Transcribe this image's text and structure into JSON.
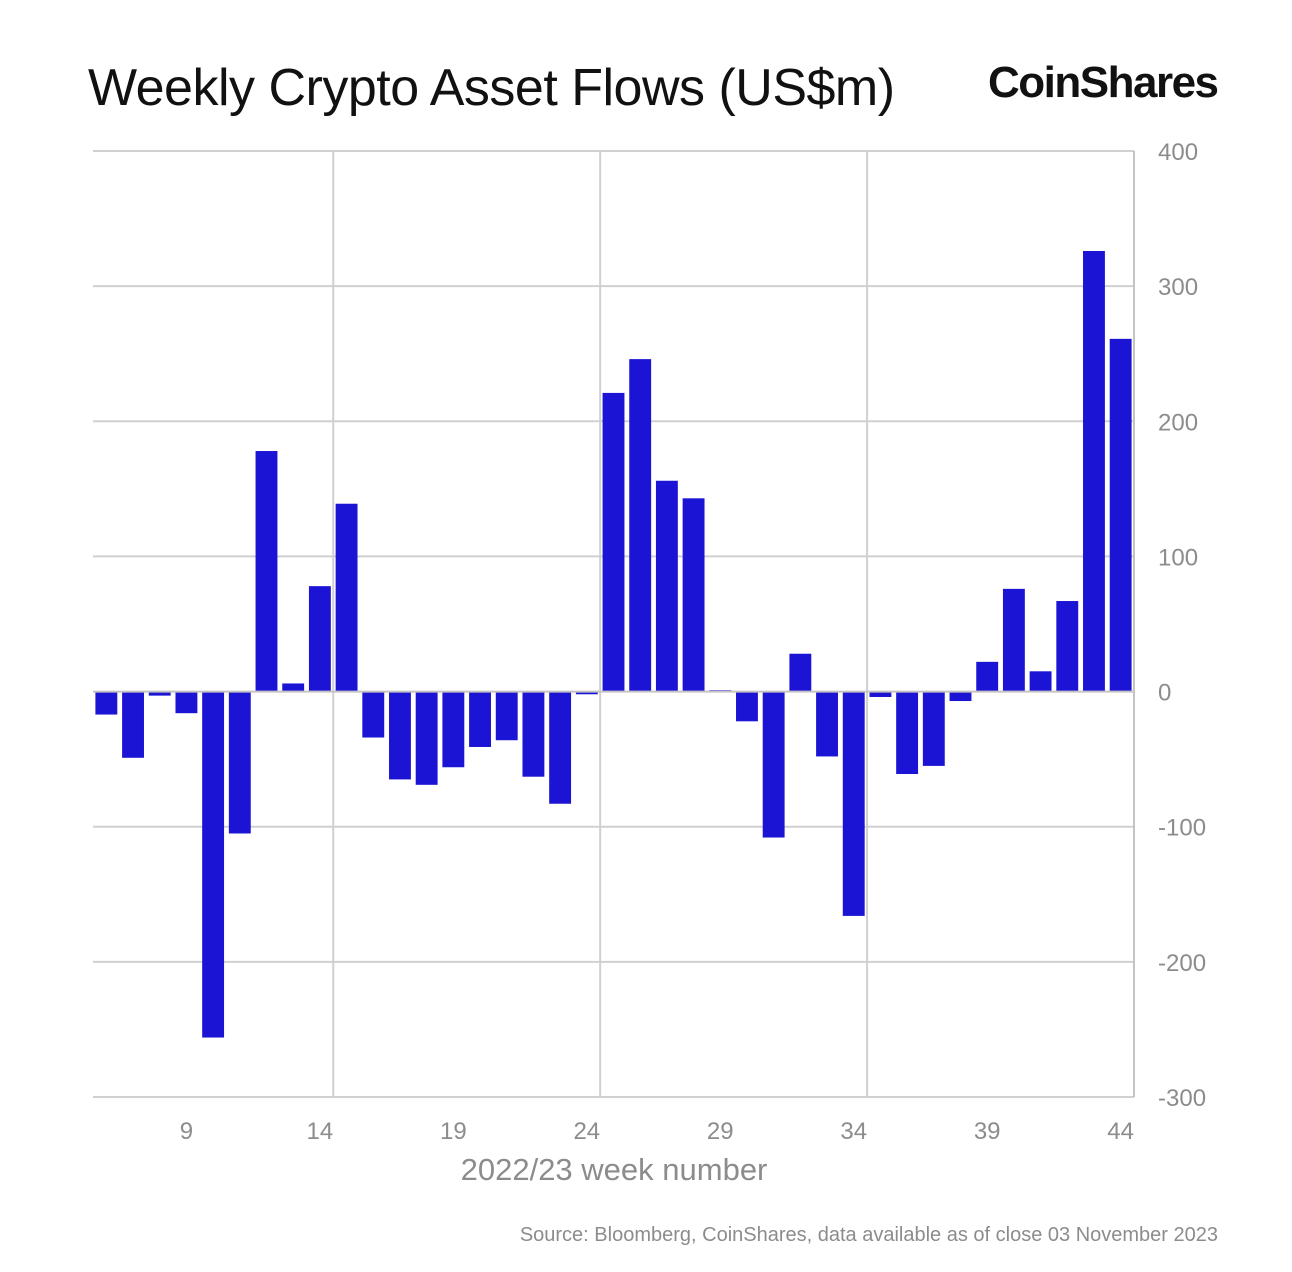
{
  "chart_data": {
    "type": "bar",
    "title": "Weekly Crypto Asset Flows (US$m)",
    "brand": "CoinShares",
    "xlabel": "2022/23 week number",
    "ylabel": "",
    "source": "Source: Bloomberg, CoinShares, data available as of close 03 November 2023",
    "ylim": [
      -300,
      400
    ],
    "y_ticks": [
      "400",
      "300",
      "200",
      "100",
      "0",
      "-100",
      "-200",
      "-300"
    ],
    "y_axis_side": "right",
    "x_ticks": [
      "9",
      "14",
      "19",
      "24",
      "29",
      "34",
      "39",
      "44"
    ],
    "grid": true,
    "bar_color": "#1c14d4",
    "categories": [
      6,
      7,
      8,
      9,
      10,
      11,
      12,
      13,
      14,
      15,
      16,
      17,
      18,
      19,
      20,
      21,
      22,
      23,
      24,
      25,
      26,
      27,
      28,
      29,
      30,
      31,
      32,
      33,
      34,
      35,
      36,
      37,
      38,
      39,
      40,
      41,
      42,
      43,
      44
    ],
    "values": [
      -17,
      -49,
      -3,
      -16,
      -256,
      -105,
      178,
      6,
      78,
      139,
      -34,
      -65,
      -69,
      -56,
      -41,
      -36,
      -63,
      -83,
      -2,
      221,
      246,
      156,
      143,
      1,
      -22,
      -108,
      28,
      -48,
      -166,
      -4,
      -61,
      -55,
      -7,
      22,
      76,
      15,
      67,
      326,
      261
    ]
  }
}
